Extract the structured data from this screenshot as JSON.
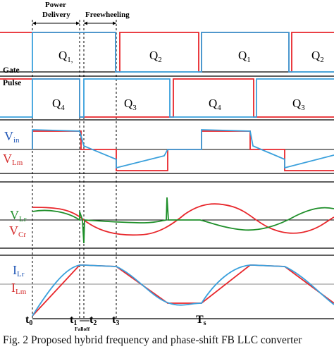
{
  "phases": {
    "power_delivery_line1": "Power",
    "power_delivery_line2": "Delivery",
    "freewheeling": "Freewheeling"
  },
  "gate_pulse": {
    "label_line1": "Gate",
    "label_line2": "Pulse",
    "q1_first": "Q",
    "q1_first_sub": "1,",
    "q2_first": "Q",
    "q2_first_sub": "2",
    "q1_second": "Q",
    "q1_second_sub": "1",
    "q2_second": "Q",
    "q2_second_sub": "2",
    "q4_first": "Q",
    "q4_first_sub": "4",
    "q3_first": "Q",
    "q3_first_sub": "3",
    "q4_second": "Q",
    "q4_second_sub": "4",
    "q3_second": "Q",
    "q3_second_sub": "3"
  },
  "voltage_panel": {
    "vin": "V",
    "vin_sub": "in",
    "vlm": "V",
    "vlm_sub": "Lm"
  },
  "resonant_panel": {
    "vlr": "V",
    "vlr_sub": "Lr",
    "vcr": "V",
    "vcr_sub": "Cr"
  },
  "current_panel": {
    "ilr": "I",
    "ilr_sub": "Lr",
    "ilm": "I",
    "ilm_sub": "Lm"
  },
  "time_axis": {
    "t0": "t",
    "t0_sub": "0",
    "t1": "t",
    "t1_sub": "1",
    "t2": "t",
    "t2_sub": "2",
    "t3": "t",
    "t3_sub": "3",
    "ts": "T",
    "ts_sub": "s",
    "falloff": "Falloff"
  },
  "caption": "Fig. 2 Proposed hybrid frequency and phase-shift FB LLC converter",
  "colors": {
    "red": "#e8262b",
    "blue": "#3aa0dc",
    "green": "#1f8f2a",
    "black": "#000000",
    "gray": "#8a8a8a"
  }
}
